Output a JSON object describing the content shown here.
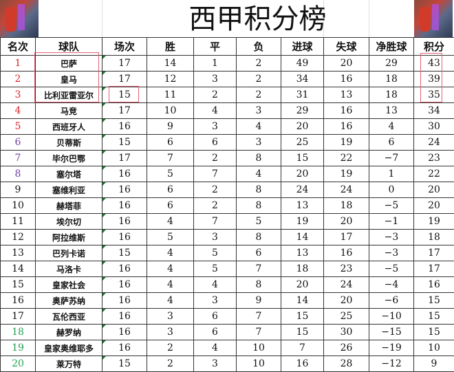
{
  "title": "西甲积分榜",
  "colors": {
    "top4": "#e0202a",
    "europa": "#7040a0",
    "relegation": "#20a050",
    "default": "#111111",
    "highlight_box": "#e06070"
  },
  "headers": [
    "名次",
    "球队",
    "场次",
    "胜",
    "平",
    "负",
    "进球",
    "失球",
    "净胜球",
    "积分"
  ],
  "rows": [
    [
      "1",
      "巴萨",
      "17",
      "14",
      "1",
      "2",
      "49",
      "20",
      "29",
      "43"
    ],
    [
      "2",
      "皇马",
      "17",
      "12",
      "3",
      "2",
      "34",
      "16",
      "18",
      "39"
    ],
    [
      "3",
      "比利亚雷亚尔",
      "15",
      "11",
      "2",
      "2",
      "31",
      "13",
      "18",
      "35"
    ],
    [
      "4",
      "马竞",
      "17",
      "10",
      "4",
      "3",
      "29",
      "16",
      "13",
      "34"
    ],
    [
      "5",
      "西班牙人",
      "16",
      "9",
      "3",
      "4",
      "20",
      "16",
      "4",
      "30"
    ],
    [
      "6",
      "贝蒂斯",
      "15",
      "6",
      "6",
      "3",
      "25",
      "19",
      "6",
      "24"
    ],
    [
      "7",
      "毕尔巴鄂",
      "17",
      "7",
      "2",
      "8",
      "15",
      "22",
      "−7",
      "23"
    ],
    [
      "8",
      "塞尔塔",
      "16",
      "5",
      "7",
      "4",
      "20",
      "19",
      "1",
      "22"
    ],
    [
      "9",
      "塞维利亚",
      "16",
      "6",
      "2",
      "8",
      "24",
      "24",
      "0",
      "20"
    ],
    [
      "10",
      "赫塔菲",
      "16",
      "6",
      "2",
      "8",
      "13",
      "18",
      "−5",
      "20"
    ],
    [
      "11",
      "埃尔切",
      "16",
      "4",
      "7",
      "5",
      "19",
      "20",
      "−1",
      "19"
    ],
    [
      "12",
      "阿拉维斯",
      "16",
      "5",
      "3",
      "8",
      "14",
      "17",
      "−3",
      "18"
    ],
    [
      "13",
      "巴列卡诺",
      "15",
      "4",
      "5",
      "6",
      "13",
      "16",
      "−3",
      "17"
    ],
    [
      "14",
      "马洛卡",
      "16",
      "4",
      "5",
      "7",
      "18",
      "23",
      "−5",
      "17"
    ],
    [
      "15",
      "皇家社会",
      "16",
      "4",
      "4",
      "8",
      "20",
      "24",
      "−4",
      "16"
    ],
    [
      "16",
      "奥萨苏纳",
      "16",
      "4",
      "3",
      "9",
      "14",
      "20",
      "−6",
      "15"
    ],
    [
      "17",
      "瓦伦西亚",
      "16",
      "3",
      "6",
      "7",
      "15",
      "25",
      "−10",
      "15"
    ],
    [
      "18",
      "赫罗纳",
      "16",
      "3",
      "6",
      "7",
      "15",
      "30",
      "−15",
      "15"
    ],
    [
      "19",
      "皇家奥维耶多",
      "16",
      "2",
      "4",
      "10",
      "7",
      "26",
      "−19",
      "10"
    ],
    [
      "20",
      "莱万特",
      "15",
      "2",
      "3",
      "10",
      "16",
      "28",
      "−12",
      "9"
    ]
  ]
}
